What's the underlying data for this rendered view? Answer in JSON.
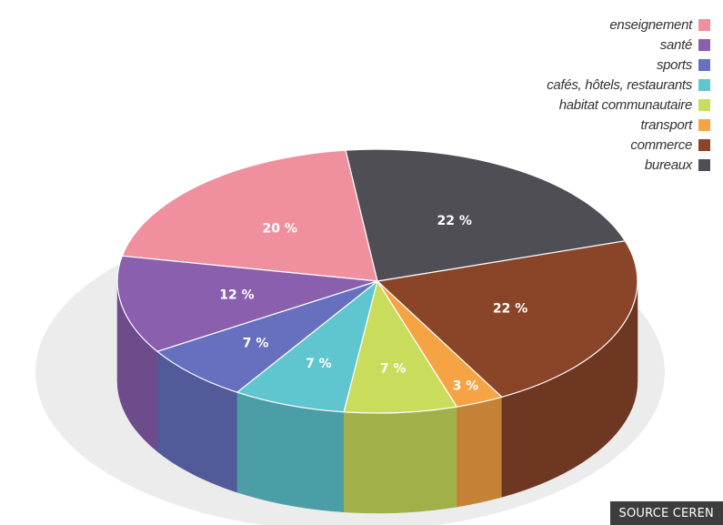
{
  "chart_data": {
    "type": "pie",
    "title": "",
    "slices": [
      {
        "label": "enseignement",
        "value": 20,
        "value_label": "20 %",
        "color": "#f0909e"
      },
      {
        "label": "santé",
        "value": 12,
        "value_label": "12 %",
        "color": "#8a5fae"
      },
      {
        "label": "sports",
        "value": 7,
        "value_label": "7 %",
        "color": "#6670bf"
      },
      {
        "label": "cafés, hôtels, restaurants",
        "value": 7,
        "value_label": "7 %",
        "color": "#5fc6cf"
      },
      {
        "label": "habitat communautaire",
        "value": 7,
        "value_label": "7 %",
        "color": "#c9dc5b"
      },
      {
        "label": "transport",
        "value": 3,
        "value_label": "3 %",
        "color": "#f6a344"
      },
      {
        "label": "commerce",
        "value": 22,
        "value_label": "22 %",
        "color": "#8a4529"
      },
      {
        "label": "bureaux",
        "value": 22,
        "value_label": "22 %",
        "color": "#4f4e54"
      }
    ],
    "legend_position": "top-right",
    "style": "3d"
  },
  "legend_order": [
    "enseignement",
    "santé",
    "sports",
    "cafés, hôtels, restaurants",
    "habitat communautaire",
    "transport",
    "commerce",
    "bureaux"
  ],
  "legend": [
    {
      "label": "enseignement",
      "color": "#f0909e"
    },
    {
      "label": "santé",
      "color": "#8a5fae"
    },
    {
      "label": "sports",
      "color": "#6670bf"
    },
    {
      "label": "cafés, hôtels, restaurants",
      "color": "#5fc6cf"
    },
    {
      "label": "habitat communautaire",
      "color": "#c9dc5b"
    },
    {
      "label": "transport",
      "color": "#f6a344"
    },
    {
      "label": "commerce",
      "color": "#8a4529"
    },
    {
      "label": "bureaux",
      "color": "#4f4e54"
    }
  ],
  "source": "SOURCE CEREN"
}
